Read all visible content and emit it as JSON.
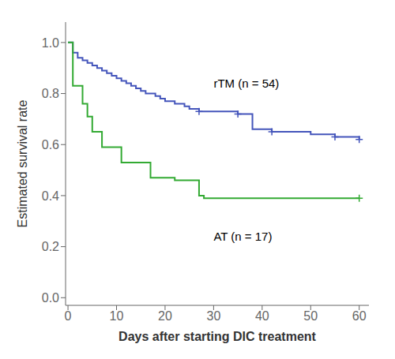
{
  "chart_data": {
    "type": "step",
    "xlabel": "Days after starting DIC treatment",
    "ylabel": "Estimated survival rate",
    "xlim": [
      -0.5,
      62
    ],
    "ylim": [
      -0.03,
      1.08
    ],
    "xticks": [
      0,
      10,
      20,
      30,
      40,
      50,
      60
    ],
    "yticks": [
      {
        "value": 0.0,
        "label": "0.0"
      },
      0.2,
      0.4,
      0.6,
      0.8,
      {
        "value": 1.0,
        "label": "1.0"
      }
    ],
    "series": [
      {
        "type": "step",
        "color": "#4455bb",
        "x": [
          0,
          1,
          2,
          3,
          4,
          5,
          6,
          7,
          8,
          9,
          10,
          11,
          12,
          13,
          14,
          15,
          16,
          17,
          18,
          19,
          20,
          21,
          22,
          23,
          24,
          25,
          26,
          27,
          30,
          35,
          38,
          42,
          50,
          55,
          60
        ],
        "values": [
          1.0,
          0.96,
          0.94,
          0.93,
          0.92,
          0.91,
          0.9,
          0.89,
          0.88,
          0.87,
          0.86,
          0.85,
          0.84,
          0.83,
          0.82,
          0.81,
          0.8,
          0.8,
          0.79,
          0.78,
          0.77,
          0.77,
          0.76,
          0.76,
          0.75,
          0.74,
          0.74,
          0.73,
          0.73,
          0.72,
          0.66,
          0.65,
          0.64,
          0.63,
          0.62
        ]
      },
      {
        "type": "step",
        "color": "#33aa33",
        "x": [
          0,
          1,
          2,
          3,
          4,
          5,
          6,
          7,
          9,
          11,
          14,
          17,
          20,
          22,
          25,
          27,
          28,
          60
        ],
        "values": [
          1.0,
          0.83,
          0.83,
          0.76,
          0.71,
          0.65,
          0.65,
          0.59,
          0.59,
          0.53,
          0.53,
          0.47,
          0.47,
          0.46,
          0.46,
          0.4,
          0.39,
          0.39
        ]
      },
      {
        "type": "scatter",
        "marker": "plus",
        "color": "#4455bb",
        "x": [
          27,
          35,
          42,
          55,
          60
        ],
        "values": [
          0.73,
          0.72,
          0.65,
          0.63,
          0.62
        ]
      },
      {
        "type": "scatter",
        "marker": "plus",
        "color": "#33aa33",
        "x": [
          60
        ],
        "values": [
          0.39
        ]
      }
    ],
    "annotations": [
      {
        "text": "rTM (n = 54)",
        "x": 30,
        "y": 0.84
      },
      {
        "text": "AT (n = 17)",
        "x": 30,
        "y": 0.24
      }
    ]
  }
}
